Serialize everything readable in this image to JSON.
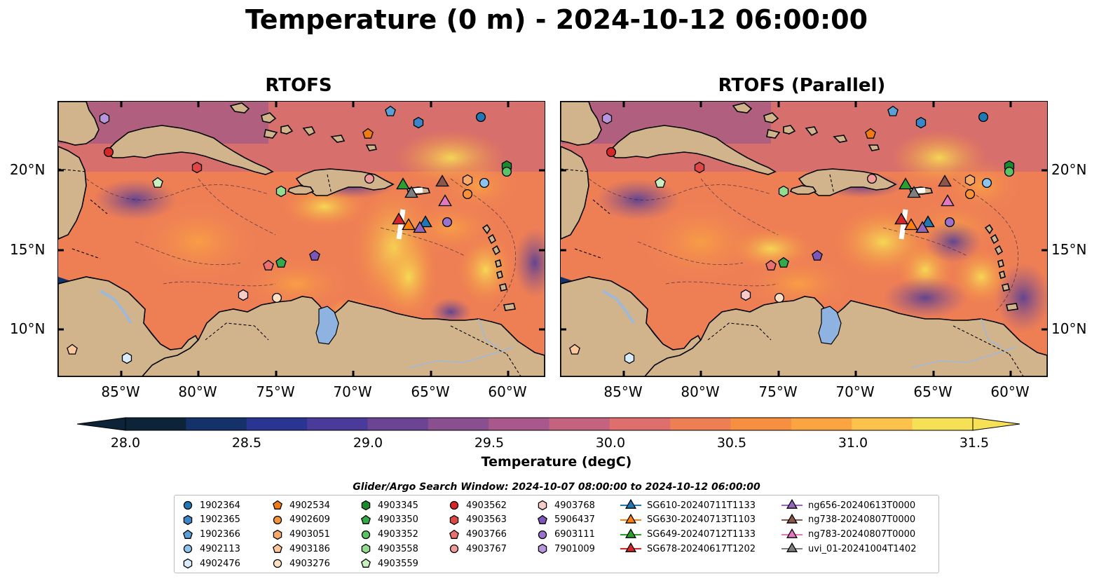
{
  "title": "Temperature (0 m) - 2024-10-12 06:00:00",
  "panels": [
    {
      "title": "RTOFS"
    },
    {
      "title": "RTOFS (Parallel)"
    }
  ],
  "lat_labels": [
    "20°N",
    "15°N",
    "10°N"
  ],
  "lon_labels": [
    "85°W",
    "80°W",
    "75°W",
    "70°W",
    "65°W",
    "60°W"
  ],
  "colorbar": {
    "label": "Temperature (degC)",
    "ticks": [
      "28.0",
      "28.5",
      "29.0",
      "29.5",
      "30.0",
      "30.5",
      "31.0",
      "31.5"
    ],
    "range": [
      28.0,
      31.5
    ],
    "colors": [
      "#0d2438",
      "#15316a",
      "#2a3492",
      "#4a3a99",
      "#6b4494",
      "#8a4f8f",
      "#a8588a",
      "#c46380",
      "#de6f6c",
      "#ee7f55",
      "#f78f40",
      "#fba542",
      "#fcc24b",
      "#f6e055"
    ]
  },
  "land_color": "#d2b48c",
  "lake_color": "#8fb3e0",
  "search_window": "Glider/Argo Search Window: 2024-10-07 08:00:00 to 2024-10-12 06:00:00",
  "legend": [
    {
      "label": "1902364",
      "shape": "circle",
      "color": "#1f77b4"
    },
    {
      "label": "1902365",
      "shape": "hexagon",
      "color": "#3a86c8"
    },
    {
      "label": "1902366",
      "shape": "pentagon",
      "color": "#5a9fd6"
    },
    {
      "label": "4902113",
      "shape": "circle",
      "color": "#8cc4ef"
    },
    {
      "label": "4902476",
      "shape": "hexagon",
      "color": "#d9ecfb"
    },
    {
      "label": "4902534",
      "shape": "pentagon",
      "color": "#f07a14"
    },
    {
      "label": "4902609",
      "shape": "circle",
      "color": "#f5923a"
    },
    {
      "label": "4903051",
      "shape": "hexagon",
      "color": "#f8a968"
    },
    {
      "label": "4903186",
      "shape": "pentagon",
      "color": "#fbc79b"
    },
    {
      "label": "4903276",
      "shape": "circle",
      "color": "#fde0c4"
    },
    {
      "label": "4903345",
      "shape": "hexagon",
      "color": "#1b8a2c"
    },
    {
      "label": "4903350",
      "shape": "pentagon",
      "color": "#34a94a"
    },
    {
      "label": "4903352",
      "shape": "circle",
      "color": "#5cc266"
    },
    {
      "label": "4903558",
      "shape": "hexagon",
      "color": "#93dc8d"
    },
    {
      "label": "4903559",
      "shape": "pentagon",
      "color": "#c8f0bf"
    },
    {
      "label": "4903562",
      "shape": "circle",
      "color": "#d62728"
    },
    {
      "label": "4903563",
      "shape": "hexagon",
      "color": "#e04646"
    },
    {
      "label": "4903766",
      "shape": "pentagon",
      "color": "#ea6f6f"
    },
    {
      "label": "4903767",
      "shape": "circle",
      "color": "#f29b9b"
    },
    {
      "label": "4903768",
      "shape": "hexagon",
      "color": "#f8cbcb"
    },
    {
      "label": "5906437",
      "shape": "pentagon",
      "color": "#7e55b8"
    },
    {
      "label": "6903111",
      "shape": "circle",
      "color": "#9a72cc"
    },
    {
      "label": "7901009",
      "shape": "hexagon",
      "color": "#b796de"
    },
    {
      "label": "SG610-20240711T1133",
      "shape": "triangle",
      "color": "#1f77b4"
    },
    {
      "label": "SG630-20240713T1103",
      "shape": "triangle",
      "color": "#ff7f0e"
    },
    {
      "label": "SG649-20240712T1133",
      "shape": "triangle",
      "color": "#2ca02c"
    },
    {
      "label": "SG678-20240617T1202",
      "shape": "triangle",
      "color": "#d62728"
    },
    {
      "label": "ng656-20240613T0000",
      "shape": "triangle",
      "color": "#9467bd"
    },
    {
      "label": "ng738-20240807T0000",
      "shape": "triangle",
      "color": "#8c564b"
    },
    {
      "label": "ng783-20240807T0000",
      "shape": "triangle",
      "color": "#e377c2"
    },
    {
      "label": "uvi_01-20241004T1402",
      "shape": "triangle",
      "color": "#7f7f7f"
    }
  ]
}
